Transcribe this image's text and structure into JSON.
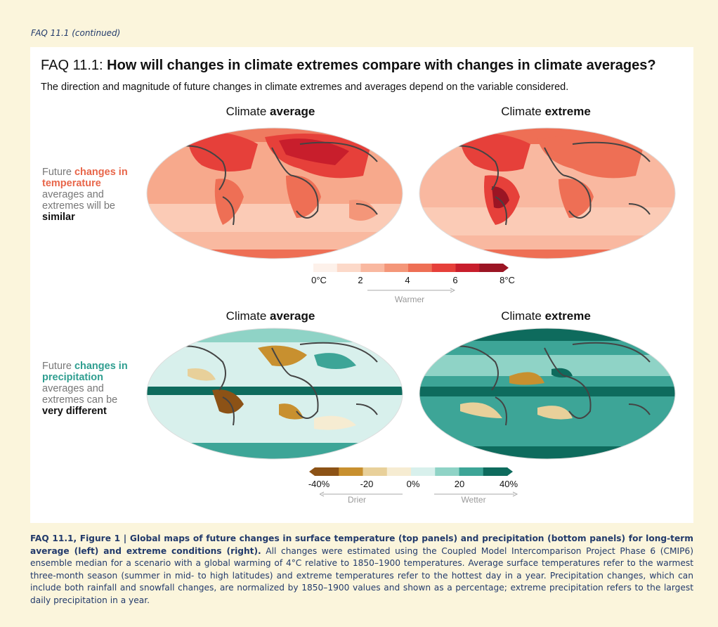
{
  "header_note": "FAQ 11.1 (continued)",
  "faq": {
    "prefix": "FAQ 11.1: ",
    "question": "How will changes in climate extremes compare with changes in climate averages?",
    "subtitle": "The direction and magnitude of future changes in climate extremes and averages depend on the variable considered."
  },
  "columns": {
    "average_prefix": "Climate ",
    "average_bold": "average",
    "extreme_prefix": "Climate ",
    "extreme_bold": "extreme"
  },
  "temperature_row": {
    "label_1": "Future ",
    "label_highlight": "changes in temperature",
    "label_2": " averages and extremes will be ",
    "label_strong": "similar"
  },
  "precipitation_row": {
    "label_1": "Future ",
    "label_highlight": "changes in precipitation",
    "label_2": " averages and extremes can be ",
    "label_strong": "very different"
  },
  "temp_colorbar": {
    "colors": [
      "#fdf1ea",
      "#fcd9c9",
      "#f9b8a0",
      "#f49679",
      "#ee6f55",
      "#e6403a",
      "#c81e2c",
      "#9b1524"
    ],
    "ticks": [
      "0°C",
      "2",
      "4",
      "6",
      "8°C"
    ],
    "direction": "Warmer"
  },
  "precip_colorbar": {
    "colors": [
      "#8c5216",
      "#c8902f",
      "#e8d09a",
      "#f6ecd2",
      "#d8f0ec",
      "#8fd3c6",
      "#3da597",
      "#0e6b5d"
    ],
    "ticks": [
      "-40%",
      "-20",
      "0%",
      "20",
      "40%"
    ],
    "direction_left": "Drier",
    "direction_right": "Wetter"
  },
  "caption": {
    "bold": "FAQ 11.1, Figure 1 | Global maps of future changes in surface temperature (top panels) and precipitation (bottom panels) for long-term average (left) and extreme conditions (right).",
    "text": " All changes were estimated using the Coupled Model Intercomparison Project Phase 6 (CMIP6) ensemble median for a scenario with a global warming of 4°C relative to 1850–1900 temperatures. Average surface temperatures refer to the warmest three-month season (summer in mid- to high latitudes) and extreme temperatures refer to the hottest day in a year. Precipitation changes, which can include both rainfall and snowfall changes, are normalized by 1850–1900 values and shown as a percentage; extreme precipitation refers to the largest daily precipitation in a year."
  }
}
